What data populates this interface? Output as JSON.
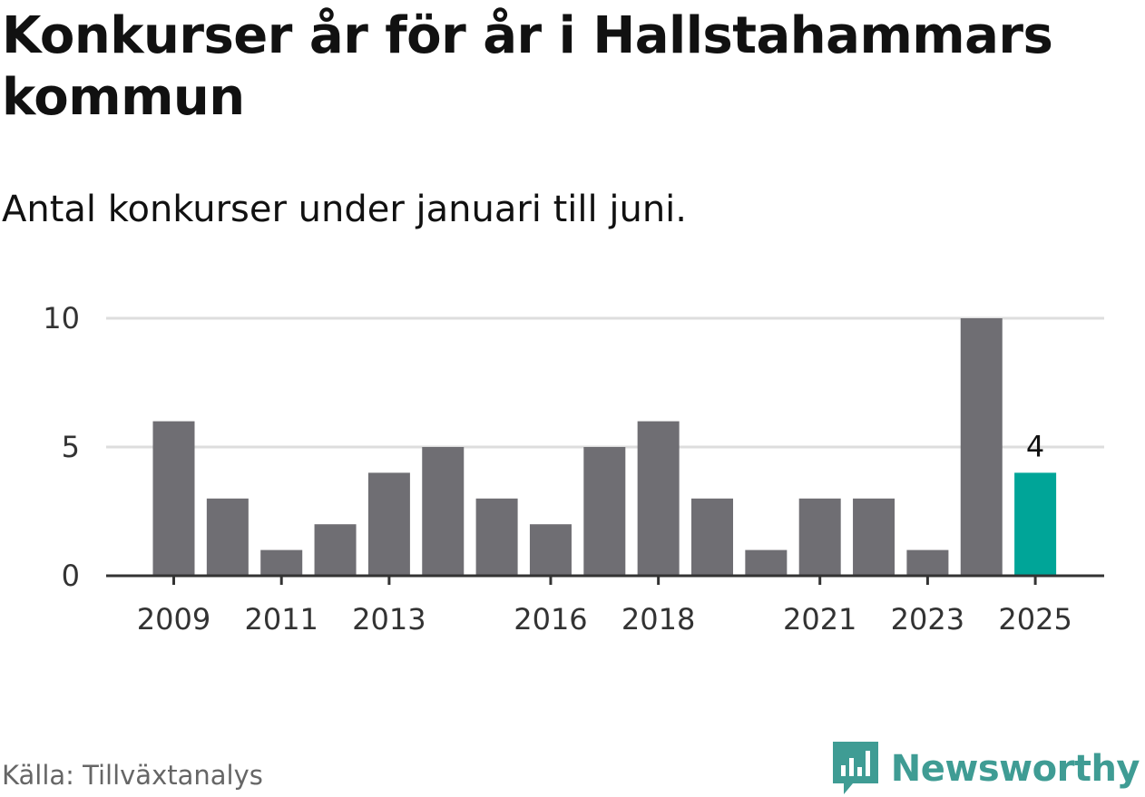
{
  "title": "Konkurser år för år i Hallstahammars kommun",
  "subtitle": "Antal konkurser under januari till juni.",
  "source": "Källa: Tillväxtanalys",
  "brand": {
    "name": "Newsworthy",
    "icon": "newsworthy-logo-icon",
    "color": "#3f9c94"
  },
  "chart_data": {
    "type": "bar",
    "categories": [
      "2009",
      "2010",
      "2011",
      "2012",
      "2013",
      "2014",
      "2015",
      "2016",
      "2017",
      "2018",
      "2019",
      "2020",
      "2021",
      "2022",
      "2023",
      "2024",
      "2025"
    ],
    "values": [
      6,
      3,
      1,
      2,
      4,
      5,
      3,
      2,
      5,
      6,
      3,
      1,
      3,
      3,
      1,
      10,
      4
    ],
    "x_tick_labels": [
      "2009",
      "2011",
      "2013",
      "2016",
      "2018",
      "2021",
      "2023",
      "2025"
    ],
    "y_ticks": [
      0,
      5,
      10
    ],
    "ylim": [
      0,
      10
    ],
    "grid": true,
    "highlight": {
      "category": "2025",
      "label": "4"
    },
    "colors": {
      "bar": "#6f6e73",
      "highlight": "#00a598",
      "grid": "#dddddd",
      "axis": "#333333"
    }
  }
}
